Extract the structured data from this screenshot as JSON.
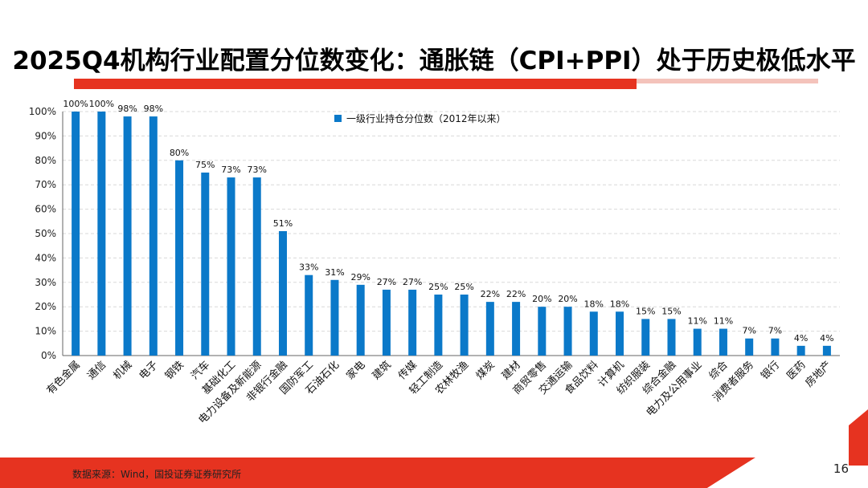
{
  "page": {
    "title": "2025Q4机构行业配置分位数变化：通胀链（CPI+PPI）处于历史极低水平",
    "source": "数据来源：Wind，国投证券证券研究所",
    "page_number": "16",
    "accent_color": "#e63320"
  },
  "chart_data": {
    "type": "bar",
    "title": "",
    "xlabel": "",
    "ylabel": "",
    "ylim": [
      0,
      100
    ],
    "yticks": [
      "0%",
      "10%",
      "20%",
      "30%",
      "40%",
      "50%",
      "60%",
      "70%",
      "80%",
      "90%",
      "100%"
    ],
    "grid": true,
    "legend_position": "top",
    "bar_color": "#0b79c9",
    "categories": [
      "有色金属",
      "通信",
      "机械",
      "电子",
      "钢铁",
      "汽车",
      "基础化工",
      "电力设备及新能源",
      "非银行金融",
      "国防军工",
      "石油石化",
      "家电",
      "建筑",
      "传媒",
      "轻工制造",
      "农林牧渔",
      "煤炭",
      "建材",
      "商贸零售",
      "交通运输",
      "食品饮料",
      "计算机",
      "纺织服装",
      "综合金融",
      "电力及公用事业",
      "综合",
      "消费者服务",
      "银行",
      "医药",
      "房地产"
    ],
    "series": [
      {
        "name": "一级行业持仓分位数（2012年以来）",
        "values": [
          100,
          100,
          98,
          98,
          80,
          75,
          73,
          73,
          51,
          33,
          31,
          29,
          27,
          27,
          25,
          25,
          22,
          22,
          20,
          20,
          18,
          18,
          15,
          15,
          11,
          11,
          7,
          7,
          4,
          4
        ],
        "labels": [
          "100%",
          "100%",
          "98%",
          "98%",
          "80%",
          "75%",
          "73%",
          "73%",
          "51%",
          "33%",
          "31%",
          "29%",
          "27%",
          "27%",
          "25%",
          "25%",
          "22%",
          "22%",
          "20%",
          "20%",
          "18%",
          "18%",
          "15%",
          "15%",
          "11%",
          "11%",
          "7%",
          "7%",
          "4%",
          "4%"
        ]
      }
    ]
  }
}
